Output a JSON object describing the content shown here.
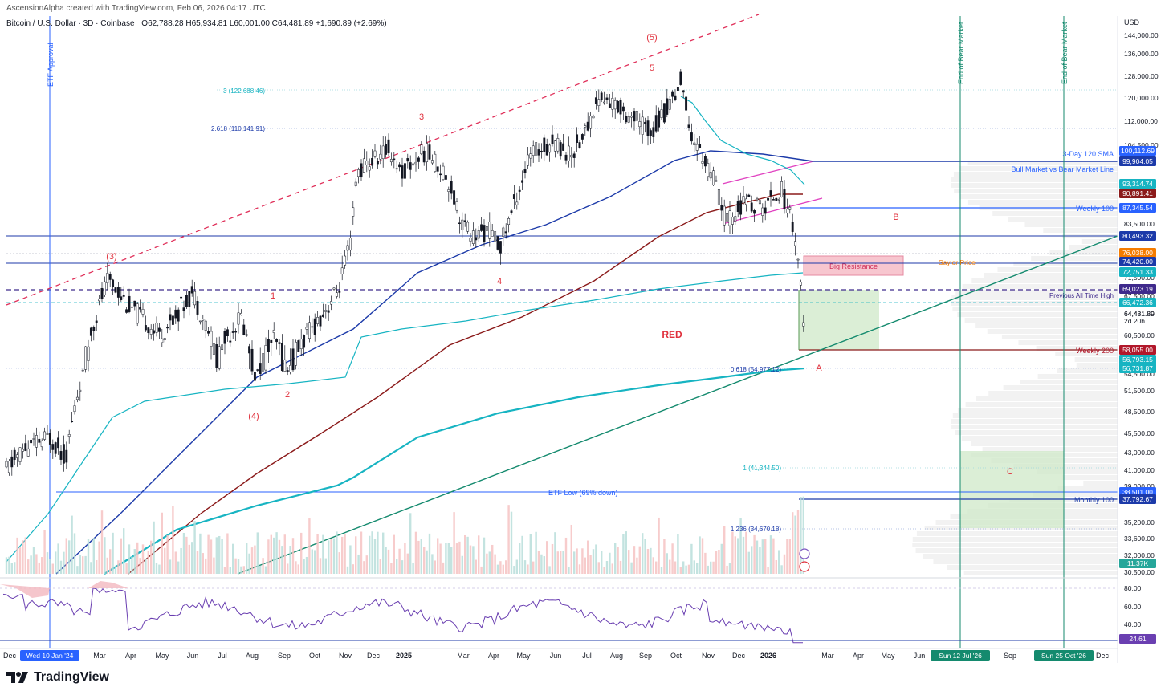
{
  "header": {
    "creator": "AscensionAlpha created with TradingView.com, Feb 06, 2026 04:17 UTC",
    "symbol": "Bitcoin / U.S. Dollar · 3D · Coinbase",
    "ohlc": "O62,788.28  H65,934.81  L60,001.00  C64,481.89  +1,690.89 (+2.69%)"
  },
  "brand": {
    "name": "TradingView"
  },
  "colors": {
    "blue_line": "#1c3aa9",
    "cyan_ma": "#17b4c2",
    "red_ma": "#8b1a1a",
    "support_green": "#148a6e",
    "red_wave": "#e0303c",
    "rsi": "#6a3fb1",
    "resistance_pink": "#f7c6cf",
    "sma_blue": "#2962ff"
  },
  "chart_data": {
    "type": "candlestick",
    "currency": "USD",
    "price_axis_ticks": [
      "144,000.00",
      "136,000.00",
      "128,000.00",
      "120,000.00",
      "112,000.00",
      "104,500.00",
      "99,904.05",
      "83,500.00",
      "76,038.00",
      "71,500.00",
      "67,500.00",
      "64,481.89",
      "60,500.00",
      "54,500.00",
      "51,500.00",
      "48,500.00",
      "45,500.00",
      "43,000.00",
      "41,000.00",
      "39,000.00",
      "35,200.00",
      "33,600.00",
      "32,000.00",
      "30,500.00"
    ],
    "rsi_axis_ticks": [
      "80.00",
      "60.00",
      "40.00"
    ],
    "time_axis_ticks": [
      "Dec",
      "Mar",
      "Apr",
      "May",
      "Jun",
      "Jul",
      "Aug",
      "Sep",
      "Oct",
      "Nov",
      "Dec",
      "2025",
      "Mar",
      "Apr",
      "May",
      "Jun",
      "Jul",
      "Aug",
      "Sep",
      "Oct",
      "Nov",
      "Dec",
      "2026",
      "Mar",
      "Apr",
      "May",
      "Jun",
      "Sep",
      "Dec"
    ],
    "time_markers": [
      {
        "label": "Wed 10 Jan '24",
        "color": "#2962ff"
      },
      {
        "label": "Sun 12 Jul '26",
        "color": "#148a6e"
      },
      {
        "label": "Sun 25 Oct '26",
        "color": "#148a6e"
      }
    ],
    "price_badges": [
      {
        "value": "100,112.69",
        "color": "#2962ff"
      },
      {
        "value": "99,904.05",
        "color": "#1c3aa9"
      },
      {
        "value": "93,314.74",
        "color": "#17b4c2"
      },
      {
        "value": "90,891.41",
        "color": "#8b1a1a"
      },
      {
        "value": "87,345.54",
        "color": "#2962ff"
      },
      {
        "value": "80,493.32",
        "color": "#1c3aa9"
      },
      {
        "value": "76,038.00",
        "color": "#f57c00"
      },
      {
        "value": "74,420.00",
        "color": "#1c3aa9"
      },
      {
        "value": "72,751.33",
        "color": "#17b4c2"
      },
      {
        "value": "69,023.19",
        "color": "#3f2a8c"
      },
      {
        "value": "66,472.36",
        "color": "#17b4c2"
      },
      {
        "value": "58,055.00",
        "color": "#b2182b"
      },
      {
        "value": "56,793.15",
        "color": "#17b4c2"
      },
      {
        "value": "56,731.87",
        "color": "#17b4c2"
      },
      {
        "value": "38,501.00",
        "color": "#2962ff"
      },
      {
        "value": "37,792.67",
        "color": "#1c3aa9"
      },
      {
        "value": "11.37K",
        "color": "#26a69a"
      },
      {
        "value": "24.61",
        "color": "#6a3fb1"
      }
    ],
    "last_price": {
      "value": "64,481.89",
      "countdown": "2d 20h"
    },
    "level_labels": [
      {
        "text": "3-Day 120 SMA",
        "color": "#2962ff"
      },
      {
        "text": "Bull Market vs Bear Market Line",
        "color": "#2962ff"
      },
      {
        "text": "Weekly 100",
        "color": "#2962ff"
      },
      {
        "text": "Saylor Price",
        "color": "#f57c00"
      },
      {
        "text": "Previous All Time High",
        "color": "#3f2a8c"
      },
      {
        "text": "Weekly 200",
        "color": "#b2182b"
      },
      {
        "text": "Monthly 100",
        "color": "#1c3aa9"
      },
      {
        "text": "ETF Low (69% down)",
        "color": "#2962ff"
      },
      {
        "text": "Big Resistance",
        "color": "#d0305a"
      }
    ],
    "fib_labels": [
      {
        "text": "3 (122,688.46)",
        "color": "#17b4c2"
      },
      {
        "text": "2.618 (110,141.91)",
        "color": "#1c3aa9"
      },
      {
        "text": "0.618 (54,977.12)",
        "color": "#1c3aa9"
      },
      {
        "text": "1 (41,344.50)",
        "color": "#17b4c2"
      },
      {
        "text": "1.236 (34,670.18)",
        "color": "#1c3aa9"
      }
    ],
    "wave_labels": [
      "(3)",
      "(4)",
      "(5)",
      "1",
      "2",
      "3",
      "4",
      "5",
      "A",
      "B",
      "C",
      "RED"
    ],
    "vertical_notes": [
      "ETF Approval",
      "End of Bear Market",
      "End of Bear Market"
    ]
  }
}
